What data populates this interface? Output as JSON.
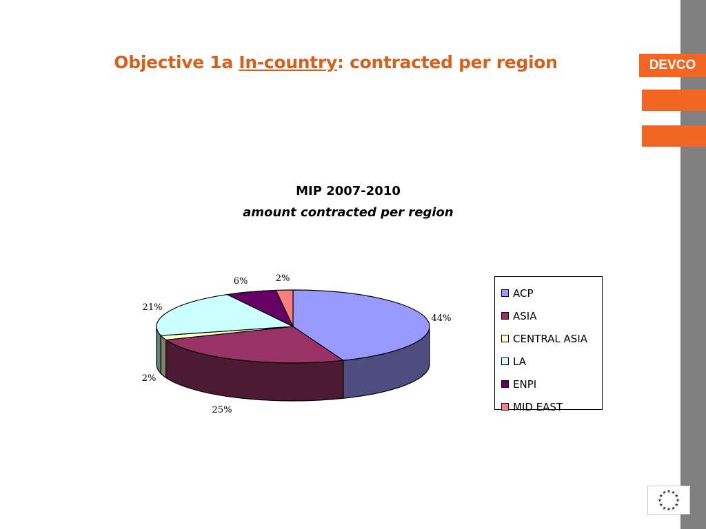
{
  "slide": {
    "title_prefix": "Objective 1a ",
    "title_underlined": "In-country",
    "title_suffix": ": contracted per region",
    "brand_tab": "DEVCO"
  },
  "colors": {
    "title": "#d4601f",
    "brand_orange": "#f26522",
    "side_bar": "#808080"
  },
  "icons": {
    "eu_flag": "eu-stars-icon"
  },
  "chart_data": {
    "type": "pie",
    "title": "MIP 2007-2010",
    "subtitle": "amount contracted per region",
    "categories": [
      "ACP",
      "ASIA",
      "CENTRAL ASIA",
      "LA",
      "ENPI",
      "MID EAST"
    ],
    "values": [
      44,
      25,
      2,
      21,
      6,
      2
    ],
    "value_labels": [
      "44%",
      "25%",
      "2%",
      "21%",
      "6%",
      "2%"
    ],
    "colors": [
      "#9999ff",
      "#993366",
      "#ffffcc",
      "#ccffff",
      "#660066",
      "#ff8080"
    ],
    "style": "3d",
    "legend_position": "right"
  }
}
